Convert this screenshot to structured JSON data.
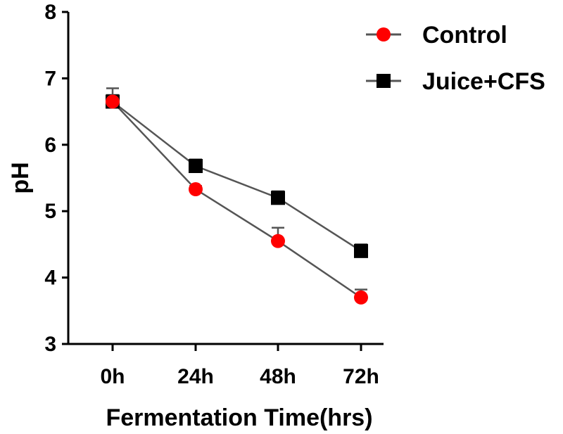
{
  "chart_data": {
    "type": "line",
    "title": "",
    "xlabel": "Fermentation Time(hrs)",
    "ylabel": "pH",
    "categories": [
      "0h",
      "24h",
      "48h",
      "72h"
    ],
    "ylim": [
      3,
      8
    ],
    "yticks": [
      "3",
      "4",
      "5",
      "6",
      "7",
      "8"
    ],
    "legend_position": "top-right",
    "series": [
      {
        "name": "Control",
        "marker": "circle",
        "color": "#ff0000",
        "values": [
          6.65,
          5.33,
          4.55,
          3.7
        ],
        "errors": [
          0.2,
          0.05,
          0.2,
          0.12
        ]
      },
      {
        "name": "Juice+CFS",
        "marker": "square",
        "color": "#000000",
        "values": [
          6.65,
          5.68,
          5.2,
          4.4
        ],
        "errors": [
          0.1,
          0.1,
          0.1,
          0.1
        ]
      }
    ]
  }
}
